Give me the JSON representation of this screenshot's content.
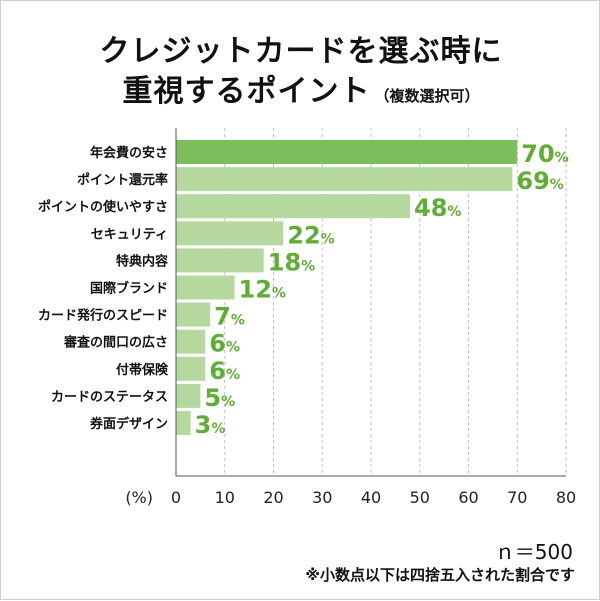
{
  "chart_data": {
    "type": "bar",
    "orientation": "horizontal",
    "title_line1": "クレジットカードを選ぶ時に",
    "title_line2": "重視するポイント",
    "title_note": "（複数選択可）",
    "categories": [
      "年会費の安さ",
      "ポイント還元率",
      "ポイントの使いやすさ",
      "セキュリティ",
      "特典内容",
      "国際ブランド",
      "カード発行のスピード",
      "審査の間口の広さ",
      "付帯保険",
      "カードのステータス",
      "券面デザイン"
    ],
    "values": [
      70,
      69,
      48,
      22,
      18,
      12,
      7,
      6,
      6,
      5,
      3
    ],
    "value_unit": "%",
    "xlabel": "(%)",
    "xlim": [
      0,
      80
    ],
    "xticks": [
      0,
      10,
      20,
      30,
      40,
      50,
      60,
      70,
      80
    ],
    "grid": "dashed vertical",
    "n_label": "ｎ＝500",
    "footnote": "※小数点以下は四捨五入された割合です"
  },
  "colors": {
    "bar_top": "#7cbd5c",
    "bar": "#b5d89e",
    "value_text": "#5fae34",
    "grid": "#bdbdbd",
    "axis": "#555555"
  }
}
